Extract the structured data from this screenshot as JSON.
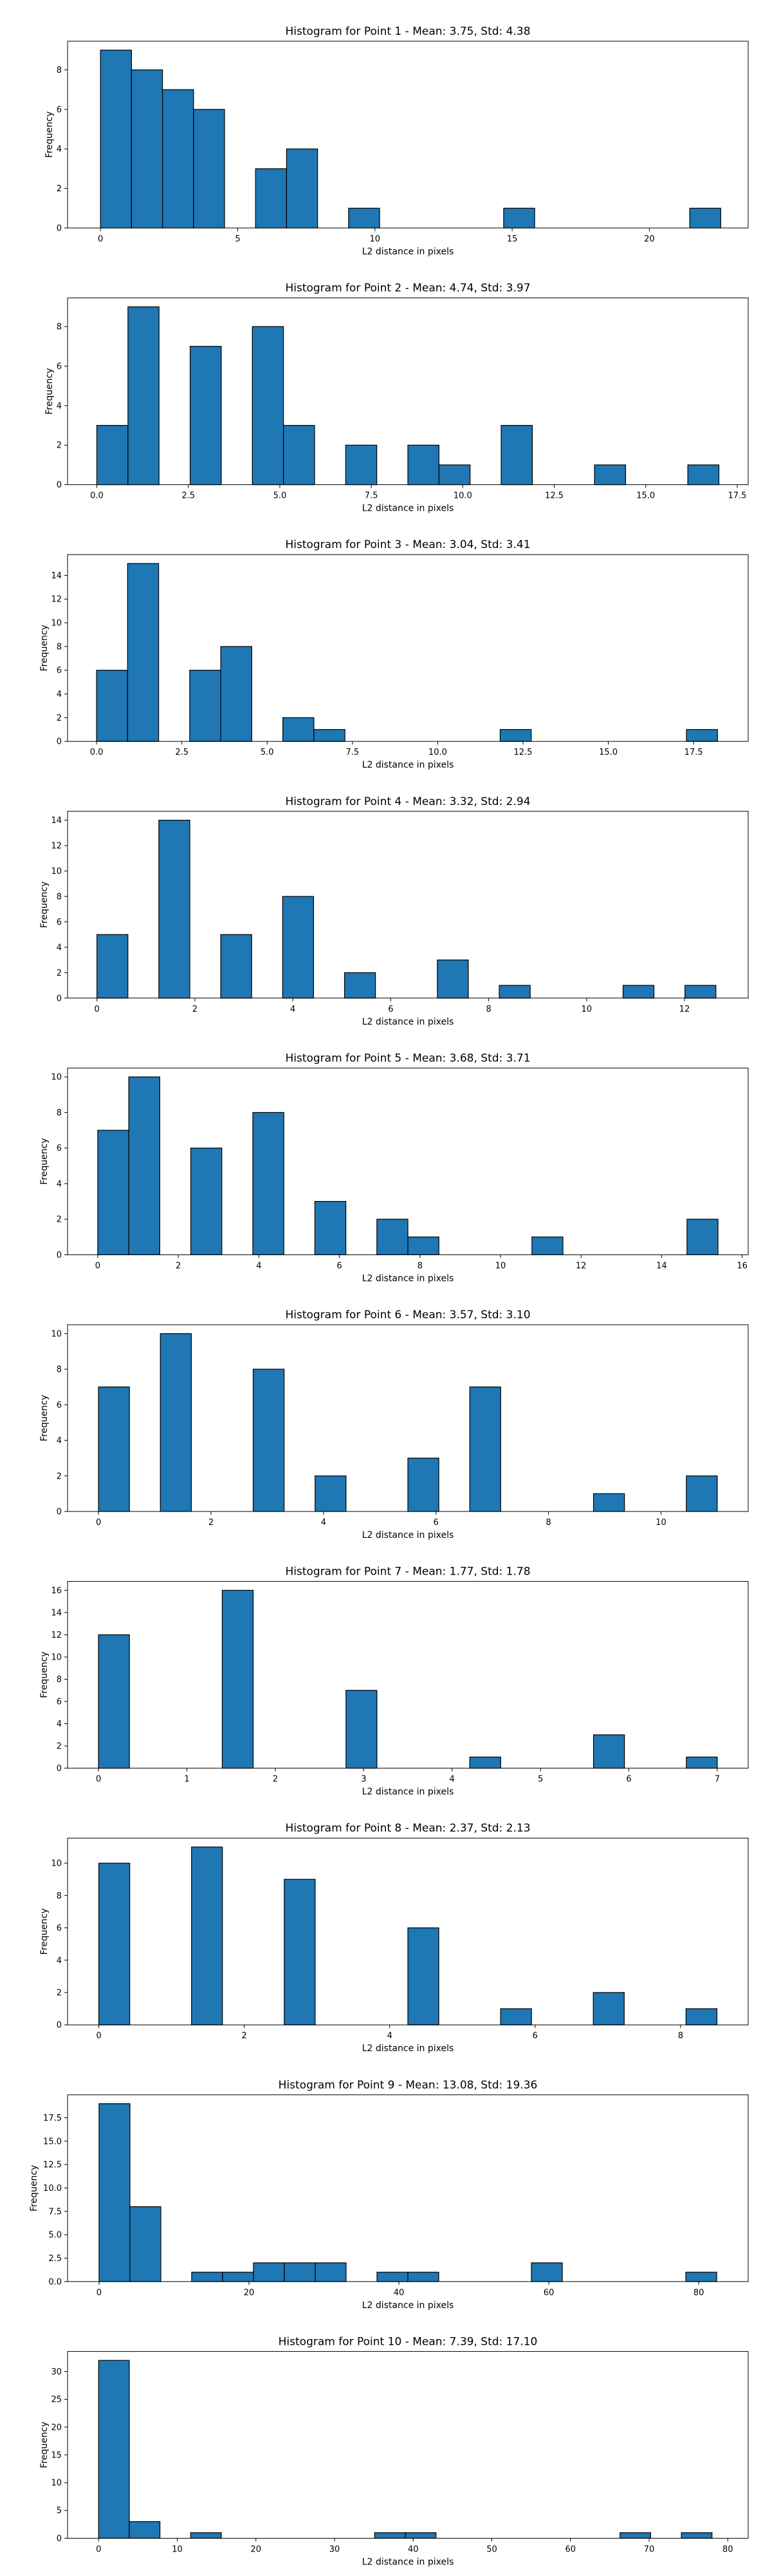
{
  "chart_data": [
    {
      "type": "bar",
      "title": "Histogram for Point 1 - Mean: 3.75, Std: 4.38",
      "xlabel": "L2 distance in pixels",
      "ylabel": "Frequency",
      "xlim": [
        -1.2,
        23.6
      ],
      "ylim": [
        0,
        9.45
      ],
      "xticks": [
        0,
        5,
        10,
        15,
        20
      ],
      "xtick_labels": [
        "0",
        "5",
        "10",
        "15",
        "20"
      ],
      "yticks": [
        0,
        2,
        4,
        6,
        8
      ],
      "ytick_labels": [
        "0",
        "2",
        "4",
        "6",
        "8"
      ],
      "bin_width": 1.13,
      "bins_start": [
        0.0,
        1.13,
        2.26,
        3.39,
        5.65,
        6.78,
        9.04,
        14.69,
        21.47
      ],
      "values": [
        9,
        8,
        7,
        6,
        3,
        4,
        1,
        1,
        1
      ],
      "color": "#1f77b4",
      "edgecolor": "#000000"
    },
    {
      "type": "bar",
      "title": "Histogram for Point 2 - Mean: 4.74, Std: 3.97",
      "xlabel": "L2 distance in pixels",
      "ylabel": "Frequency",
      "xlim": [
        -0.8,
        17.8
      ],
      "ylim": [
        0,
        9.45
      ],
      "xticks": [
        0,
        2.5,
        5,
        7.5,
        10,
        12.5,
        15,
        17.5
      ],
      "xtick_labels": [
        "0.0",
        "2.5",
        "5.0",
        "7.5",
        "10.0",
        "12.5",
        "15.0",
        "17.5"
      ],
      "yticks": [
        0,
        2,
        4,
        6,
        8
      ],
      "ytick_labels": [
        "0",
        "2",
        "4",
        "6",
        "8"
      ],
      "bin_width": 0.85,
      "bins_start": [
        0.0,
        0.85,
        2.55,
        4.25,
        5.1,
        6.8,
        8.5,
        9.35,
        11.05,
        13.6,
        16.15
      ],
      "values": [
        3,
        9,
        7,
        8,
        3,
        2,
        2,
        1,
        3,
        1,
        1
      ],
      "color": "#1f77b4",
      "edgecolor": "#000000"
    },
    {
      "type": "bar",
      "title": "Histogram for Point 3 - Mean: 3.04, Std: 3.41",
      "xlabel": "L2 distance in pixels",
      "ylabel": "Frequency",
      "xlim": [
        -0.85,
        19.1
      ],
      "ylim": [
        0,
        15.75
      ],
      "xticks": [
        0,
        2.5,
        5,
        7.5,
        10,
        12.5,
        15,
        17.5
      ],
      "xtick_labels": [
        "0.0",
        "2.5",
        "5.0",
        "7.5",
        "10.0",
        "12.5",
        "15.0",
        "17.5"
      ],
      "yticks": [
        0,
        2,
        4,
        6,
        8,
        10,
        12,
        14
      ],
      "ytick_labels": [
        "0",
        "2",
        "4",
        "6",
        "8",
        "10",
        "12",
        "14"
      ],
      "bin_width": 0.91,
      "bins_start": [
        0.0,
        0.91,
        2.73,
        3.64,
        5.46,
        6.37,
        11.83,
        17.29
      ],
      "values": [
        6,
        15,
        6,
        8,
        2,
        1,
        1,
        1
      ],
      "color": "#1f77b4",
      "edgecolor": "#000000"
    },
    {
      "type": "bar",
      "title": "Histogram for Point 4 - Mean: 3.32, Std: 2.94",
      "xlabel": "L2 distance in pixels",
      "ylabel": "Frequency",
      "xlim": [
        -0.6,
        13.3
      ],
      "ylim": [
        0,
        14.7
      ],
      "xticks": [
        0,
        2,
        4,
        6,
        8,
        10,
        12
      ],
      "xtick_labels": [
        "0",
        "2",
        "4",
        "6",
        "8",
        "10",
        "12"
      ],
      "yticks": [
        0,
        2,
        4,
        6,
        8,
        10,
        12,
        14
      ],
      "ytick_labels": [
        "0",
        "2",
        "4",
        "6",
        "8",
        "10",
        "12",
        "14"
      ],
      "bin_width": 0.632,
      "bins_start": [
        0.0,
        1.264,
        2.528,
        3.792,
        5.056,
        6.952,
        8.216,
        10.744,
        12.008
      ],
      "values": [
        5,
        14,
        5,
        8,
        2,
        3,
        1,
        1,
        1
      ],
      "color": "#1f77b4",
      "edgecolor": "#000000"
    },
    {
      "type": "bar",
      "title": "Histogram for Point 5 - Mean: 3.68, Std: 3.71",
      "xlabel": "L2 distance in pixels",
      "ylabel": "Frequency",
      "xlim": [
        -0.75,
        16.15
      ],
      "ylim": [
        0,
        10.5
      ],
      "xticks": [
        0,
        2,
        4,
        6,
        8,
        10,
        12,
        14,
        16
      ],
      "xtick_labels": [
        "0",
        "2",
        "4",
        "6",
        "8",
        "10",
        "12",
        "14",
        "16"
      ],
      "yticks": [
        0,
        2,
        4,
        6,
        8,
        10
      ],
      "ytick_labels": [
        "0",
        "2",
        "4",
        "6",
        "8",
        "10"
      ],
      "bin_width": 0.77,
      "bins_start": [
        0.0,
        0.77,
        2.31,
        3.85,
        5.39,
        6.93,
        7.7,
        10.78,
        14.63
      ],
      "values": [
        7,
        10,
        6,
        8,
        3,
        2,
        1,
        1,
        2
      ],
      "color": "#1f77b4",
      "edgecolor": "#000000"
    },
    {
      "type": "bar",
      "title": "Histogram for Point 6 - Mean: 3.57, Std: 3.10",
      "xlabel": "L2 distance in pixels",
      "ylabel": "Frequency",
      "xlim": [
        -0.55,
        11.55
      ],
      "ylim": [
        0,
        10.5
      ],
      "xticks": [
        0,
        2,
        4,
        6,
        8,
        10
      ],
      "xtick_labels": [
        "0",
        "2",
        "4",
        "6",
        "8",
        "10"
      ],
      "yticks": [
        0,
        2,
        4,
        6,
        8,
        10
      ],
      "ytick_labels": [
        "0",
        "2",
        "4",
        "6",
        "8",
        "10"
      ],
      "bin_width": 0.55,
      "bins_start": [
        0.0,
        1.1,
        2.75,
        3.85,
        5.5,
        6.6,
        8.8,
        10.45
      ],
      "values": [
        7,
        10,
        8,
        2,
        3,
        7,
        1,
        2
      ],
      "color": "#1f77b4",
      "edgecolor": "#000000"
    },
    {
      "type": "bar",
      "title": "Histogram for Point 7 - Mean: 1.77, Std: 1.78",
      "xlabel": "L2 distance in pixels",
      "ylabel": "Frequency",
      "xlim": [
        -0.35,
        7.35
      ],
      "ylim": [
        0,
        16.8
      ],
      "xticks": [
        0,
        1,
        2,
        3,
        4,
        5,
        6,
        7
      ],
      "xtick_labels": [
        "0",
        "1",
        "2",
        "3",
        "4",
        "5",
        "6",
        "7"
      ],
      "yticks": [
        0,
        2,
        4,
        6,
        8,
        10,
        12,
        14,
        16
      ],
      "ytick_labels": [
        "0",
        "2",
        "4",
        "6",
        "8",
        "10",
        "12",
        "14",
        "16"
      ],
      "bin_width": 0.35,
      "bins_start": [
        0.0,
        1.4,
        2.8,
        4.2,
        5.6,
        6.65
      ],
      "values": [
        12,
        16,
        7,
        1,
        3,
        1
      ],
      "color": "#1f77b4",
      "edgecolor": "#000000"
    },
    {
      "type": "bar",
      "title": "Histogram for Point 8 - Mean: 2.37, Std: 2.13",
      "xlabel": "L2 distance in pixels",
      "ylabel": "Frequency",
      "xlim": [
        -0.43,
        8.93
      ],
      "ylim": [
        0,
        11.55
      ],
      "xticks": [
        0,
        2,
        4,
        6,
        8
      ],
      "xtick_labels": [
        "0",
        "2",
        "4",
        "6",
        "8"
      ],
      "yticks": [
        0,
        2,
        4,
        6,
        8,
        10
      ],
      "ytick_labels": [
        "0",
        "2",
        "4",
        "6",
        "8",
        "10"
      ],
      "bin_width": 0.425,
      "bins_start": [
        0.0,
        1.275,
        2.55,
        4.25,
        5.525,
        6.8,
        8.075
      ],
      "values": [
        10,
        11,
        9,
        6,
        1,
        2,
        1
      ],
      "color": "#1f77b4",
      "edgecolor": "#000000"
    },
    {
      "type": "bar",
      "title": "Histogram for Point 9 - Mean: 13.08, Std: 19.36",
      "xlabel": "L2 distance in pixels",
      "ylabel": "Frequency",
      "xlim": [
        -4.2,
        86.6
      ],
      "ylim": [
        0,
        19.95
      ],
      "xticks": [
        0,
        20,
        40,
        60,
        80
      ],
      "xtick_labels": [
        "0",
        "20",
        "40",
        "60",
        "80"
      ],
      "yticks": [
        0,
        2.5,
        5,
        7.5,
        10,
        12.5,
        15,
        17.5
      ],
      "ytick_labels": [
        "0.0",
        "2.5",
        "5.0",
        "7.5",
        "10.0",
        "12.5",
        "15.0",
        "17.5"
      ],
      "bin_width": 4.12,
      "bins_start": [
        0.0,
        4.12,
        12.36,
        16.48,
        20.6,
        24.72,
        28.84,
        37.08,
        41.2,
        57.68,
        78.28
      ],
      "values": [
        19,
        8,
        1,
        1,
        2,
        2,
        2,
        1,
        1,
        2,
        1
      ],
      "color": "#1f77b4",
      "edgecolor": "#000000"
    },
    {
      "type": "bar",
      "title": "Histogram for Point 10 - Mean: 7.39, Std: 17.10",
      "xlabel": "L2 distance in pixels",
      "ylabel": "Frequency",
      "xlim": [
        -3.95,
        82.6
      ],
      "ylim": [
        0,
        33.6
      ],
      "xticks": [
        0,
        10,
        20,
        30,
        40,
        50,
        60,
        70,
        80
      ],
      "xtick_labels": [
        "0",
        "10",
        "20",
        "30",
        "40",
        "50",
        "60",
        "70",
        "80"
      ],
      "yticks": [
        0,
        5,
        10,
        15,
        20,
        25,
        30
      ],
      "ytick_labels": [
        "0",
        "5",
        "10",
        "15",
        "20",
        "25",
        "30"
      ],
      "bin_width": 3.9,
      "bins_start": [
        0.0,
        3.9,
        11.7,
        35.1,
        39.0,
        66.3,
        74.1
      ],
      "values": [
        32,
        3,
        1,
        1,
        1,
        1,
        1
      ],
      "color": "#1f77b4",
      "edgecolor": "#000000"
    }
  ]
}
